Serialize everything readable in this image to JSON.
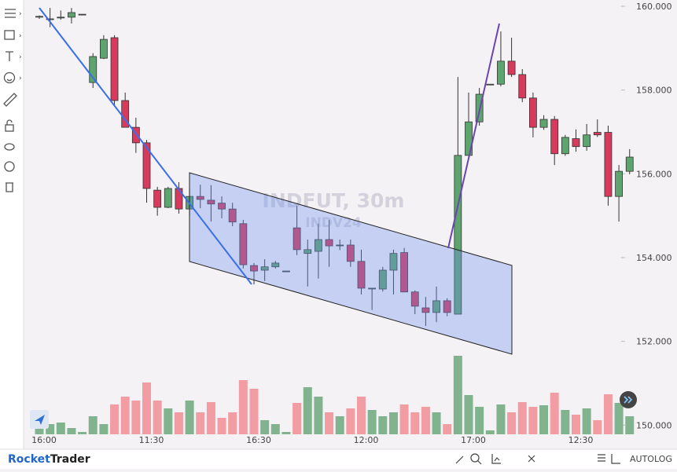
{
  "chart_data": {
    "type": "candlestick",
    "watermark": "INDFUT, 30m",
    "watermark_sub": "INDV24",
    "categories": [
      "16:00",
      null,
      null,
      null,
      null,
      null,
      null,
      null,
      null,
      null,
      "11:30",
      null,
      null,
      null,
      null,
      null,
      null,
      null,
      null,
      null,
      "16:30",
      null,
      null,
      null,
      null,
      null,
      null,
      null,
      null,
      null,
      "12:00",
      null,
      null,
      null,
      null,
      null,
      null,
      null,
      null,
      null,
      "17:00",
      null,
      null,
      null,
      null,
      null,
      null,
      null,
      null,
      null,
      "12:30",
      null,
      null,
      null,
      null,
      null
    ],
    "open": [
      159.74,
      159.7,
      159.73,
      159.74,
      159.81,
      158.18,
      158.76,
      159.25,
      157.75,
      157.11,
      156.74,
      155.61,
      155.2,
      155.65,
      155.16,
      155.46,
      155.37,
      155.3,
      155.16,
      154.81,
      153.81,
      153.7,
      153.78,
      153.68,
      154.71,
      154.1,
      154.15,
      154.43,
      154.3,
      154.3,
      153.91,
      153.27,
      153.25,
      153.7,
      154.12,
      153.18,
      152.8,
      152.69,
      152.97,
      152.65,
      156.44,
      157.24,
      158.14,
      158.14,
      158.69,
      158.37,
      157.81,
      157.11,
      157.3,
      156.48,
      156.84,
      156.65,
      156.99,
      156.99,
      155.46,
      156.06
    ],
    "high": [
      159.78,
      159.96,
      159.9,
      159.96,
      159.81,
      158.88,
      159.31,
      159.31,
      157.94,
      157.34,
      156.81,
      155.69,
      155.69,
      155.8,
      155.65,
      155.74,
      155.73,
      155.46,
      155.31,
      154.9,
      153.87,
      153.96,
      153.92,
      153.68,
      155.24,
      154.43,
      154.81,
      154.9,
      154.43,
      154.43,
      154.19,
      153.27,
      153.78,
      154.19,
      154.23,
      153.22,
      153.06,
      153.31,
      153.03,
      158.31,
      157.94,
      158.05,
      158.14,
      159.4,
      159.25,
      158.5,
      157.94,
      157.4,
      157.38,
      156.93,
      157.06,
      157.19,
      157.3,
      157.15,
      156.21,
      156.59
    ],
    "low": [
      159.7,
      159.5,
      159.68,
      159.59,
      159.81,
      158.05,
      158.74,
      157.62,
      157.11,
      156.5,
      155.31,
      155.0,
      155.18,
      155.05,
      155.0,
      155.18,
      154.86,
      154.94,
      154.75,
      153.74,
      153.36,
      153.44,
      153.74,
      153.68,
      154.06,
      153.31,
      153.5,
      153.78,
      154.18,
      153.78,
      153.12,
      152.75,
      153.19,
      153.12,
      153.18,
      152.65,
      152.37,
      152.46,
      152.6,
      152.65,
      156.4,
      157.15,
      158.14,
      158.09,
      158.31,
      157.71,
      156.87,
      157.05,
      156.21,
      156.43,
      156.53,
      156.55,
      156.88,
      155.24,
      154.86,
      155.99
    ],
    "close": [
      159.76,
      159.7,
      159.74,
      159.85,
      159.81,
      158.8,
      159.21,
      157.75,
      157.11,
      156.74,
      155.65,
      155.2,
      155.65,
      155.16,
      155.46,
      155.39,
      155.28,
      155.16,
      154.85,
      153.83,
      153.68,
      153.78,
      153.87,
      153.68,
      154.19,
      154.19,
      154.43,
      154.28,
      154.3,
      153.91,
      153.27,
      153.27,
      153.7,
      154.1,
      153.18,
      152.84,
      152.69,
      152.97,
      152.69,
      156.44,
      157.24,
      157.9,
      158.14,
      158.69,
      158.37,
      157.81,
      157.11,
      157.3,
      156.48,
      156.87,
      156.65,
      156.93,
      156.93,
      155.46,
      156.06,
      156.4
    ],
    "volume": [
      8,
      13,
      15,
      8,
      3,
      23,
      13,
      38,
      48,
      43,
      66,
      43,
      33,
      28,
      43,
      28,
      41,
      21,
      28,
      69,
      58,
      18,
      13,
      3,
      40,
      60,
      48,
      28,
      23,
      33,
      48,
      31,
      23,
      28,
      38,
      28,
      35,
      28,
      13,
      100,
      50,
      35,
      5,
      38,
      28,
      41,
      35,
      37,
      53,
      31,
      25,
      33,
      18,
      51,
      40,
      23
    ],
    "ylim": [
      149.5,
      160.15
    ],
    "yticks": [
      {
        "value": 150,
        "label": "150.000"
      },
      {
        "value": 152,
        "label": "152.000"
      },
      {
        "value": 154,
        "label": "154.000"
      },
      {
        "value": 156,
        "label": "156.000"
      },
      {
        "value": 158,
        "label": "158.000"
      },
      {
        "value": 160,
        "label": "160.000"
      }
    ],
    "grid": false,
    "up_color": "#5ea46e",
    "down_color": "#d63a5c",
    "up_volume_color": "#82b38f",
    "down_volume_color": "#f29ca3"
  },
  "ui": {
    "brand_a": "Rocket",
    "brand_b": "Trader",
    "scale_auto": "AUTO",
    "scale_log": "LOG"
  }
}
